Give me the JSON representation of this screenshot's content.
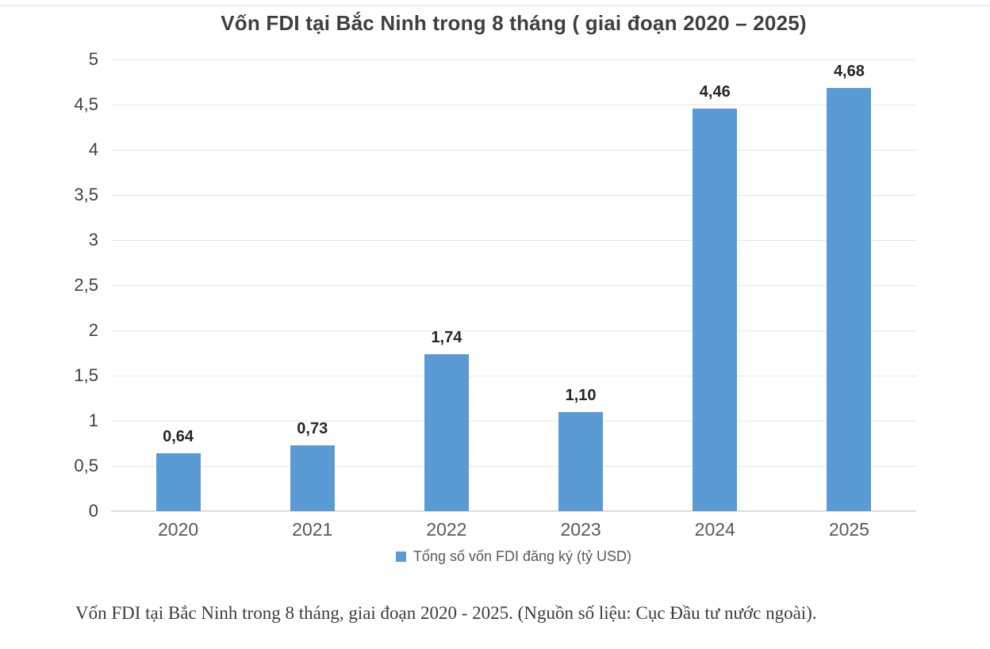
{
  "chart_data": {
    "type": "bar",
    "title": "Vốn FDI tại Bắc Ninh trong 8 tháng ( giai đoạn 2020 – 2025)",
    "categories": [
      "2020",
      "2021",
      "2022",
      "2023",
      "2024",
      "2025"
    ],
    "values": [
      0.64,
      0.73,
      1.74,
      1.1,
      4.46,
      4.68
    ],
    "value_labels": [
      "0,64",
      "0,73",
      "1,74",
      "1,10",
      "4,46",
      "4,68"
    ],
    "series_name": "Tổng số vốn FDI đăng ký (tỷ USD)",
    "xlabel": "",
    "ylabel": "",
    "ylim": [
      0,
      5
    ],
    "ytick_step": 0.5,
    "ytick_labels": [
      "0",
      "0,5",
      "1",
      "1,5",
      "2",
      "2,5",
      "3",
      "3,5",
      "4",
      "4,5",
      "5"
    ],
    "grid": true,
    "legend_position": "bottom",
    "bar_color": "#5B9BD5",
    "gridline_color": "#e6e6e6",
    "axis_line_color": "#dcdcdc"
  },
  "caption": "Vốn FDI tại Bắc Ninh trong 8 tháng, giai đoạn 2020 - 2025. (Nguồn số liệu: Cục Đầu tư nước ngoài)."
}
